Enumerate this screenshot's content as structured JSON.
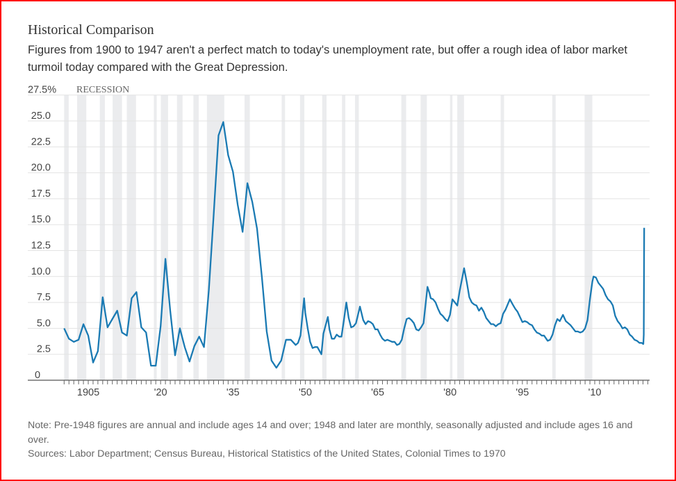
{
  "header": {
    "title": "Historical Comparison",
    "subtitle": "Figures from 1900 to 1947 aren't a perfect match to today's unemployment rate, but offer a rough idea of labor market turmoil today compared with the Great Depression."
  },
  "footer": {
    "note": "Note: Pre-1948 figures are annual and include ages 14 and over; 1948 and later are monthly, seasonally adjusted and include ages 16 and over.",
    "sources": "Sources: Labor Department; Census Bureau, Historical Statistics of the United States, Colonial Times to 1970"
  },
  "chart_data": {
    "type": "line",
    "title": "",
    "xlabel": "",
    "ylabel": "",
    "xlim": [
      1900,
      2021
    ],
    "ylim": [
      0,
      27.5
    ],
    "grid": true,
    "line_color": "#1a7ab3",
    "recession_color": "#ebecee",
    "recession_label": "RECESSION",
    "y_ticks": [
      {
        "value": 0,
        "label": "0"
      },
      {
        "value": 2.5,
        "label": "2.5"
      },
      {
        "value": 5,
        "label": "5.0"
      },
      {
        "value": 7.5,
        "label": "7.5"
      },
      {
        "value": 10,
        "label": "10.0"
      },
      {
        "value": 12.5,
        "label": "12.5"
      },
      {
        "value": 15,
        "label": "15.0"
      },
      {
        "value": 17.5,
        "label": "17.5"
      },
      {
        "value": 20,
        "label": "20.0"
      },
      {
        "value": 22.5,
        "label": "22.5"
      },
      {
        "value": 25,
        "label": "25.0"
      },
      {
        "value": 27.5,
        "label": "27.5%"
      }
    ],
    "x_ticks": [
      {
        "value": 1905,
        "label": "1905"
      },
      {
        "value": 1920,
        "label": "'20"
      },
      {
        "value": 1935,
        "label": "'35"
      },
      {
        "value": 1950,
        "label": "'50"
      },
      {
        "value": 1965,
        "label": "'65"
      },
      {
        "value": 1980,
        "label": "'80"
      },
      {
        "value": 1995,
        "label": "'95"
      },
      {
        "value": 2010,
        "label": "'10"
      }
    ],
    "recessions": [
      [
        1900.0,
        1900.95
      ],
      [
        1902.7,
        1904.6
      ],
      [
        1907.4,
        1908.45
      ],
      [
        1910.05,
        1912.0
      ],
      [
        1913.0,
        1914.9
      ],
      [
        1918.6,
        1919.2
      ],
      [
        1920.05,
        1921.55
      ],
      [
        1923.4,
        1924.55
      ],
      [
        1926.8,
        1927.9
      ],
      [
        1929.6,
        1933.2
      ],
      [
        1937.4,
        1938.5
      ],
      [
        1945.1,
        1945.8
      ],
      [
        1948.9,
        1949.8
      ],
      [
        1953.5,
        1954.4
      ],
      [
        1957.6,
        1958.3
      ],
      [
        1960.3,
        1961.1
      ],
      [
        1969.9,
        1970.9
      ],
      [
        1973.9,
        1975.2
      ],
      [
        1980.0,
        1980.5
      ],
      [
        1981.5,
        1982.9
      ],
      [
        1990.5,
        1991.2
      ],
      [
        2001.2,
        2001.9
      ],
      [
        2007.9,
        2009.5
      ]
    ],
    "series": [
      {
        "annual": [
          [
            1900,
            5.0
          ],
          [
            1901,
            4.0
          ],
          [
            1902,
            3.7
          ],
          [
            1903,
            3.9
          ],
          [
            1904,
            5.4
          ],
          [
            1905,
            4.3
          ],
          [
            1906,
            1.7
          ],
          [
            1907,
            2.8
          ],
          [
            1908,
            8.0
          ],
          [
            1909,
            5.1
          ],
          [
            1910,
            5.9
          ],
          [
            1911,
            6.7
          ],
          [
            1912,
            4.6
          ],
          [
            1913,
            4.3
          ],
          [
            1914,
            7.9
          ],
          [
            1915,
            8.5
          ],
          [
            1916,
            5.1
          ],
          [
            1917,
            4.6
          ],
          [
            1918,
            1.4
          ],
          [
            1919,
            1.4
          ],
          [
            1920,
            5.2
          ],
          [
            1921,
            11.7
          ],
          [
            1922,
            6.7
          ],
          [
            1923,
            2.4
          ],
          [
            1924,
            5.0
          ],
          [
            1925,
            3.2
          ],
          [
            1926,
            1.8
          ],
          [
            1927,
            3.3
          ],
          [
            1928,
            4.2
          ],
          [
            1929,
            3.2
          ],
          [
            1930,
            8.7
          ],
          [
            1931,
            15.9
          ],
          [
            1932,
            23.6
          ],
          [
            1933,
            24.9
          ],
          [
            1934,
            21.7
          ],
          [
            1935,
            20.1
          ],
          [
            1936,
            16.9
          ],
          [
            1937,
            14.3
          ],
          [
            1938,
            19.0
          ],
          [
            1939,
            17.2
          ],
          [
            1940,
            14.6
          ],
          [
            1941,
            9.9
          ],
          [
            1942,
            4.7
          ],
          [
            1943,
            1.9
          ],
          [
            1944,
            1.2
          ],
          [
            1945,
            1.9
          ],
          [
            1946,
            3.9
          ],
          [
            1947,
            3.9
          ]
        ],
        "monthly": [
          [
            "1948-01",
            3.4
          ],
          [
            "1948-07",
            3.6
          ],
          [
            "1949-01",
            4.3
          ],
          [
            "1949-10",
            7.9
          ],
          [
            "1950-01",
            6.5
          ],
          [
            "1950-07",
            5.0
          ],
          [
            "1951-01",
            3.7
          ],
          [
            "1951-07",
            3.1
          ],
          [
            "1952-01",
            3.2
          ],
          [
            "1952-07",
            3.2
          ],
          [
            "1953-05",
            2.5
          ],
          [
            "1953-10",
            4.5
          ],
          [
            "1954-09",
            6.1
          ],
          [
            "1955-01",
            4.9
          ],
          [
            "1955-07",
            4.0
          ],
          [
            "1956-01",
            4.0
          ],
          [
            "1956-07",
            4.4
          ],
          [
            "1957-01",
            4.2
          ],
          [
            "1957-07",
            4.2
          ],
          [
            "1958-01",
            5.8
          ],
          [
            "1958-07",
            7.5
          ],
          [
            "1959-01",
            6.0
          ],
          [
            "1959-07",
            5.1
          ],
          [
            "1960-01",
            5.2
          ],
          [
            "1960-07",
            5.5
          ],
          [
            "1961-05",
            7.1
          ],
          [
            "1962-01",
            5.8
          ],
          [
            "1962-07",
            5.4
          ],
          [
            "1963-01",
            5.7
          ],
          [
            "1963-07",
            5.6
          ],
          [
            "1964-01",
            5.4
          ],
          [
            "1964-07",
            4.9
          ],
          [
            "1965-01",
            4.9
          ],
          [
            "1965-07",
            4.4
          ],
          [
            "1966-01",
            4.0
          ],
          [
            "1966-07",
            3.8
          ],
          [
            "1967-01",
            3.9
          ],
          [
            "1967-07",
            3.8
          ],
          [
            "1968-01",
            3.7
          ],
          [
            "1968-07",
            3.7
          ],
          [
            "1969-01",
            3.4
          ],
          [
            "1969-07",
            3.5
          ],
          [
            "1970-01",
            3.9
          ],
          [
            "1970-07",
            5.0
          ],
          [
            "1971-01",
            5.9
          ],
          [
            "1971-07",
            6.0
          ],
          [
            "1972-01",
            5.8
          ],
          [
            "1972-07",
            5.5
          ],
          [
            "1973-01",
            4.9
          ],
          [
            "1973-07",
            4.8
          ],
          [
            "1974-01",
            5.1
          ],
          [
            "1974-07",
            5.5
          ],
          [
            "1975-05",
            9.0
          ],
          [
            "1975-10",
            8.4
          ],
          [
            "1976-01",
            7.9
          ],
          [
            "1976-07",
            7.8
          ],
          [
            "1977-01",
            7.5
          ],
          [
            "1977-07",
            6.9
          ],
          [
            "1978-01",
            6.4
          ],
          [
            "1978-07",
            6.2
          ],
          [
            "1979-01",
            5.9
          ],
          [
            "1979-07",
            5.7
          ],
          [
            "1980-01",
            6.3
          ],
          [
            "1980-07",
            7.8
          ],
          [
            "1981-01",
            7.5
          ],
          [
            "1981-07",
            7.2
          ],
          [
            "1982-01",
            8.6
          ],
          [
            "1982-07",
            9.8
          ],
          [
            "1982-12",
            10.8
          ],
          [
            "1983-07",
            9.4
          ],
          [
            "1984-01",
            8.0
          ],
          [
            "1984-07",
            7.5
          ],
          [
            "1985-01",
            7.3
          ],
          [
            "1985-07",
            7.2
          ],
          [
            "1986-01",
            6.7
          ],
          [
            "1986-07",
            7.0
          ],
          [
            "1987-01",
            6.6
          ],
          [
            "1987-07",
            6.0
          ],
          [
            "1988-01",
            5.7
          ],
          [
            "1988-07",
            5.4
          ],
          [
            "1989-01",
            5.4
          ],
          [
            "1989-07",
            5.2
          ],
          [
            "1990-01",
            5.4
          ],
          [
            "1990-07",
            5.5
          ],
          [
            "1991-01",
            6.4
          ],
          [
            "1991-07",
            6.8
          ],
          [
            "1992-06",
            7.8
          ],
          [
            "1993-01",
            7.3
          ],
          [
            "1993-07",
            6.9
          ],
          [
            "1994-01",
            6.6
          ],
          [
            "1994-07",
            6.1
          ],
          [
            "1995-01",
            5.6
          ],
          [
            "1995-07",
            5.7
          ],
          [
            "1996-01",
            5.6
          ],
          [
            "1996-07",
            5.4
          ],
          [
            "1997-01",
            5.3
          ],
          [
            "1997-07",
            4.9
          ],
          [
            "1998-01",
            4.6
          ],
          [
            "1998-07",
            4.5
          ],
          [
            "1999-01",
            4.3
          ],
          [
            "1999-07",
            4.3
          ],
          [
            "2000-04",
            3.8
          ],
          [
            "2000-10",
            3.9
          ],
          [
            "2001-04",
            4.4
          ],
          [
            "2001-10",
            5.3
          ],
          [
            "2002-04",
            5.9
          ],
          [
            "2002-10",
            5.7
          ],
          [
            "2003-06",
            6.3
          ],
          [
            "2004-01",
            5.7
          ],
          [
            "2004-07",
            5.5
          ],
          [
            "2005-01",
            5.3
          ],
          [
            "2005-07",
            5.0
          ],
          [
            "2006-01",
            4.7
          ],
          [
            "2006-07",
            4.7
          ],
          [
            "2007-01",
            4.6
          ],
          [
            "2007-07",
            4.7
          ],
          [
            "2008-01",
            5.0
          ],
          [
            "2008-07",
            5.8
          ],
          [
            "2009-01",
            7.8
          ],
          [
            "2009-07",
            9.5
          ],
          [
            "2009-10",
            10.0
          ],
          [
            "2010-04",
            9.9
          ],
          [
            "2010-10",
            9.4
          ],
          [
            "2011-04",
            9.1
          ],
          [
            "2011-10",
            8.8
          ],
          [
            "2012-04",
            8.2
          ],
          [
            "2012-10",
            7.8
          ],
          [
            "2013-04",
            7.6
          ],
          [
            "2013-10",
            7.2
          ],
          [
            "2014-04",
            6.2
          ],
          [
            "2014-10",
            5.7
          ],
          [
            "2015-04",
            5.4
          ],
          [
            "2015-10",
            5.0
          ],
          [
            "2016-04",
            5.1
          ],
          [
            "2016-10",
            4.9
          ],
          [
            "2017-04",
            4.4
          ],
          [
            "2017-10",
            4.2
          ],
          [
            "2018-04",
            3.9
          ],
          [
            "2018-10",
            3.8
          ],
          [
            "2019-04",
            3.6
          ],
          [
            "2019-10",
            3.6
          ],
          [
            "2020-01",
            3.5
          ],
          [
            "2020-02",
            3.5
          ],
          [
            "2020-03",
            4.4
          ],
          [
            "2020-04",
            14.7
          ]
        ]
      }
    ]
  }
}
